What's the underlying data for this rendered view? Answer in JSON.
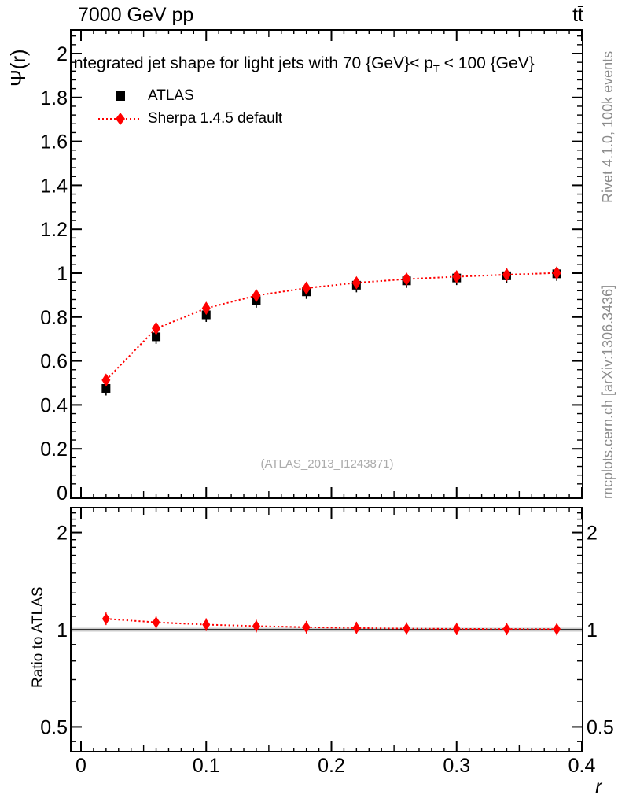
{
  "header": {
    "left": "7000 GeV pp",
    "right": "tt̄"
  },
  "sidebar_right": {
    "top": "Rivet 4.1.0,  100k events",
    "bottom": "mcplots.cern.ch [arXiv:1306.3436]"
  },
  "watermark": "(ATLAS_2013_I1243871)",
  "main_panel": {
    "ylabel": "Ψ(r)",
    "title_prefix": "Integrated jet shape for light jets with 70 {GeV}< p",
    "title_sub": "T",
    "title_suffix": " < 100 {GeV}",
    "legend": [
      {
        "label": "ATLAS",
        "marker": "square",
        "color": "#000000"
      },
      {
        "label": "Sherpa 1.4.5 default",
        "marker": "diamond",
        "color": "#ff0000",
        "line": "dotted"
      }
    ]
  },
  "ratio_panel": {
    "ylabel": "Ratio to ATLAS"
  },
  "x_axis": {
    "label": "r"
  },
  "colors": {
    "mc": "#ff0000",
    "data": "#000000",
    "gray_text": "#8c8c8c",
    "band": "#cccccc"
  },
  "chart_data": {
    "type": "scatter",
    "title": "Integrated jet shape for light jets with 70 {GeV} < p_T < 100 {GeV}",
    "xlabel": "r",
    "ylabel": "Ψ(r)",
    "xlim": [
      0,
      0.4
    ],
    "ylim": [
      0,
      2.1
    ],
    "grid": false,
    "legend_position": "top-left",
    "x": [
      0.02,
      0.06,
      0.1,
      0.14,
      0.18,
      0.22,
      0.26,
      0.3,
      0.34,
      0.38
    ],
    "series": [
      {
        "name": "ATLAS",
        "marker": "square",
        "color": "#000000",
        "values": [
          0.475,
          0.71,
          0.81,
          0.875,
          0.915,
          0.945,
          0.965,
          0.978,
          0.988,
          0.997
        ]
      },
      {
        "name": "Sherpa 1.4.5 default",
        "marker": "diamond",
        "color": "#ff0000",
        "line": "dotted",
        "values": [
          0.513,
          0.748,
          0.84,
          0.898,
          0.932,
          0.956,
          0.973,
          0.984,
          0.993,
          1.001
        ]
      }
    ],
    "x_ticks": [
      "0",
      "0.1",
      "0.2",
      "0.3",
      "0.4"
    ],
    "y_ticks": [
      "0",
      "0.2",
      "0.4",
      "0.6",
      "0.8",
      "1",
      "1.2",
      "1.4",
      "1.6",
      "1.8",
      "2"
    ],
    "ratio": {
      "ylabel": "Ratio to ATLAS",
      "yscale": "log",
      "ylim": [
        0.42,
        2.45
      ],
      "reference": 1,
      "y_ticks": [
        "0.5",
        "1",
        "2"
      ],
      "series": [
        {
          "name": "Sherpa 1.4.5 default",
          "color": "#ff0000",
          "line": "dotted",
          "values": [
            1.081,
            1.054,
            1.037,
            1.026,
            1.018,
            1.012,
            1.008,
            1.006,
            1.005,
            1.004
          ]
        }
      ]
    }
  }
}
